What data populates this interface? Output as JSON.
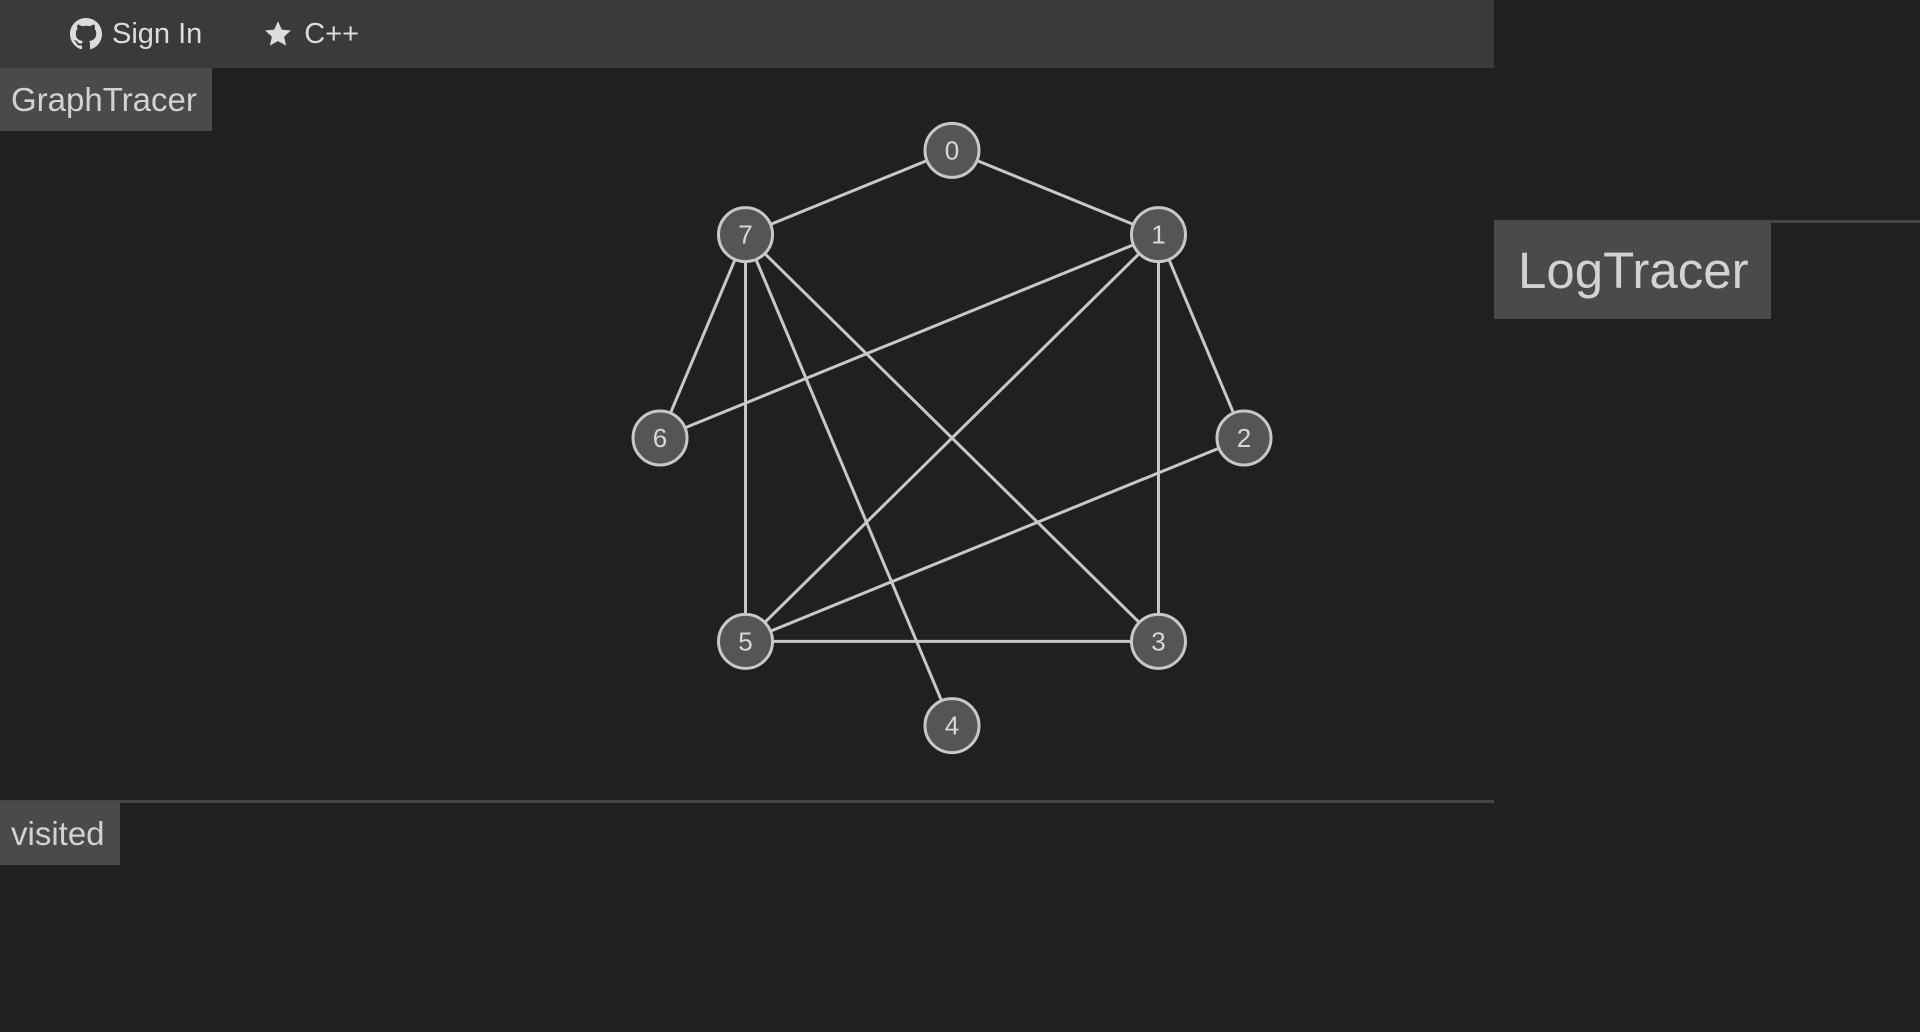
{
  "toolbar": {
    "signin_label": "Sign In",
    "signin_icon": "github-icon",
    "language_label": "C++",
    "language_icon": "star-icon"
  },
  "graph_panel": {
    "title": "GraphTracer",
    "nodes": [
      "0",
      "1",
      "2",
      "3",
      "4",
      "5",
      "6",
      "7"
    ],
    "edges": [
      [
        "0",
        "7"
      ],
      [
        "0",
        "1"
      ],
      [
        "7",
        "6"
      ],
      [
        "7",
        "5"
      ],
      [
        "7",
        "4"
      ],
      [
        "7",
        "3"
      ],
      [
        "1",
        "6"
      ],
      [
        "1",
        "5"
      ],
      [
        "1",
        "2"
      ],
      [
        "1",
        "3"
      ],
      [
        "2",
        "5"
      ],
      [
        "5",
        "3"
      ]
    ]
  },
  "visited_panel": {
    "title": "visited"
  },
  "log_panel": {
    "title": "LogTracer"
  },
  "colors": {
    "background": "#202020",
    "toolbar": "#3a3a3a",
    "title_tab": "#4a4a4a",
    "node_fill": "#555555",
    "node_stroke": "#c8c8c8",
    "edge": "#c8c8c8",
    "text": "#d8d8d8"
  }
}
